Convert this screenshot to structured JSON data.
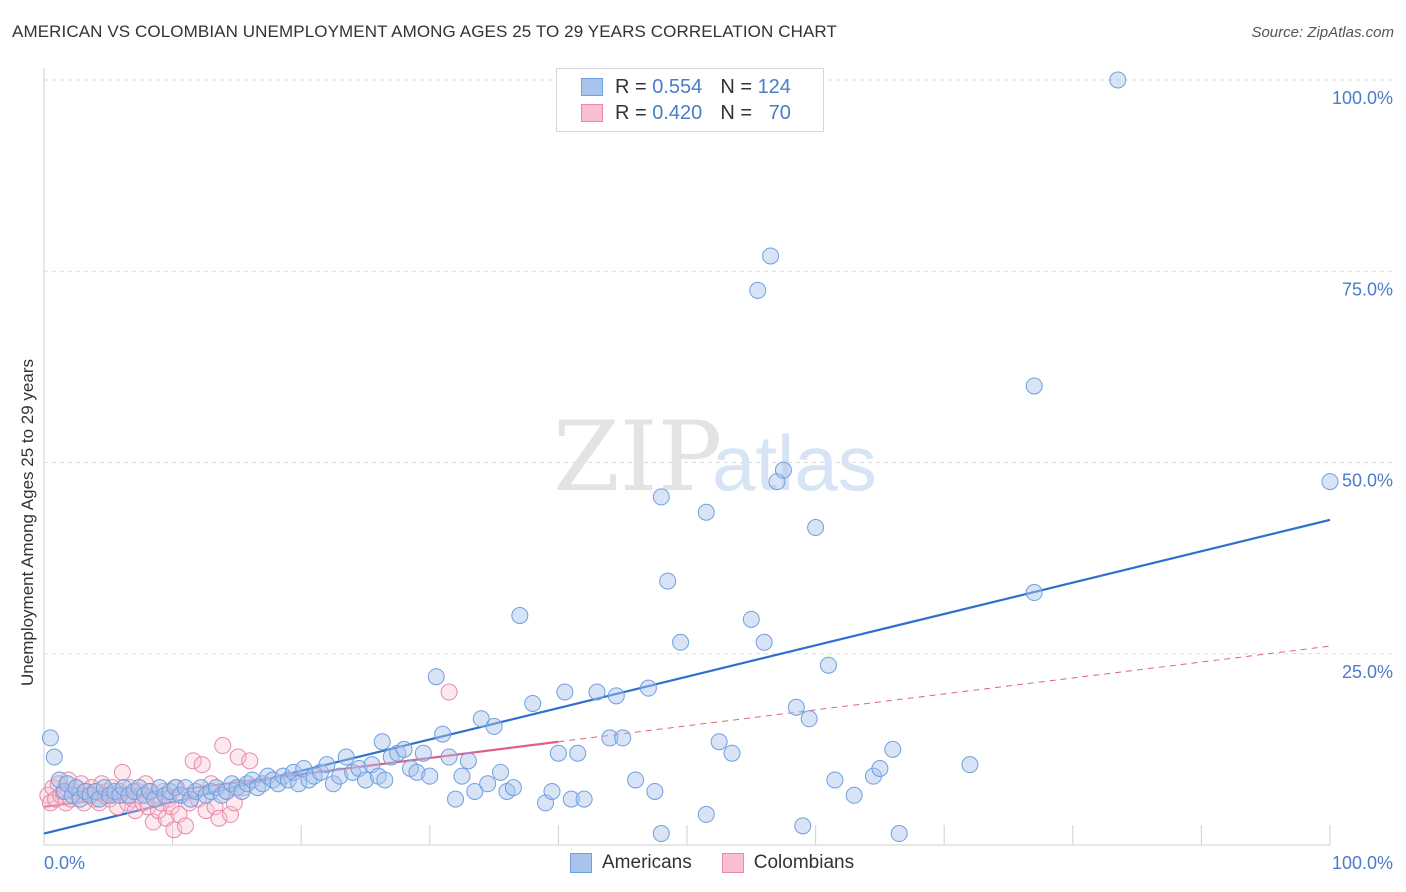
{
  "title": "AMERICAN VS COLOMBIAN UNEMPLOYMENT AMONG AGES 25 TO 29 YEARS CORRELATION CHART",
  "source": "Source: ZipAtlas.com",
  "watermark": {
    "zip": "ZIP",
    "atlas": "atlas"
  },
  "legend": {
    "rows": [
      {
        "r_label": "R =",
        "r_value": "0.554",
        "n_label": "N =",
        "n_value": "124",
        "color": "#a9c4ec",
        "stroke": "#6f9fe0"
      },
      {
        "r_label": "R =",
        "r_value": "0.420",
        "n_label": "N =",
        "n_value": "70",
        "color": "#f7bfd1",
        "stroke": "#e88aa8"
      }
    ]
  },
  "bottom_legend": {
    "americans": "Americans",
    "colombians": "Colombians"
  },
  "chart_data": {
    "type": "scatter",
    "title": "AMERICAN VS COLOMBIAN UNEMPLOYMENT AMONG AGES 25 TO 29 YEARS CORRELATION CHART",
    "xlabel": "",
    "ylabel": "Unemployment Among Ages 25 to 29 years",
    "xlim": [
      0,
      100
    ],
    "ylim": [
      0,
      100
    ],
    "x_tick_labels": [
      "0.0%",
      "100.0%"
    ],
    "y_tick_labels": [
      "100.0%",
      "75.0%",
      "50.0%",
      "25.0%"
    ],
    "y_ticks": [
      100,
      75,
      50,
      25
    ],
    "grid": true,
    "legend_position": "top-center",
    "colors": {
      "americans": "#6f9fe0",
      "americans_fill": "#a9c4ec",
      "colombians": "#e88aa8",
      "colombians_fill": "#f7bfd1",
      "americans_line": "#2f6fce",
      "colombians_line": "#e0608a"
    },
    "series": [
      {
        "name": "Americans",
        "trend": {
          "x": [
            0,
            100
          ],
          "y": [
            1.5,
            42.5
          ]
        },
        "points": [
          [
            0.5,
            14
          ],
          [
            0.8,
            11.5
          ],
          [
            1.2,
            8.5
          ],
          [
            1.6,
            7
          ],
          [
            1.8,
            8
          ],
          [
            2.2,
            6.5
          ],
          [
            2.5,
            7.5
          ],
          [
            2.8,
            6
          ],
          [
            3.2,
            7
          ],
          [
            3.6,
            6.5
          ],
          [
            4.0,
            7
          ],
          [
            4.3,
            6
          ],
          [
            4.7,
            7.5
          ],
          [
            5.1,
            6.5
          ],
          [
            5.5,
            7
          ],
          [
            5.9,
            6.5
          ],
          [
            6.2,
            7.5
          ],
          [
            6.6,
            6.5
          ],
          [
            7.0,
            7
          ],
          [
            7.4,
            7.5
          ],
          [
            7.8,
            6.5
          ],
          [
            8.2,
            7
          ],
          [
            8.6,
            6
          ],
          [
            9.0,
            7.5
          ],
          [
            9.4,
            6.5
          ],
          [
            9.8,
            7
          ],
          [
            10.2,
            7.5
          ],
          [
            10.6,
            6.5
          ],
          [
            11.0,
            7.5
          ],
          [
            11.4,
            6
          ],
          [
            11.8,
            7
          ],
          [
            12.2,
            7.5
          ],
          [
            12.6,
            6.5
          ],
          [
            13.0,
            7
          ],
          [
            13.4,
            7.5
          ],
          [
            13.8,
            6.5
          ],
          [
            14.2,
            7
          ],
          [
            14.6,
            8
          ],
          [
            15.0,
            7.5
          ],
          [
            15.4,
            7
          ],
          [
            15.8,
            8
          ],
          [
            16.2,
            8.5
          ],
          [
            16.6,
            7.5
          ],
          [
            17.0,
            8
          ],
          [
            17.4,
            9
          ],
          [
            17.8,
            8.5
          ],
          [
            18.2,
            8
          ],
          [
            18.6,
            9
          ],
          [
            19.0,
            8.5
          ],
          [
            19.4,
            9.5
          ],
          [
            19.8,
            8
          ],
          [
            20.2,
            10
          ],
          [
            20.6,
            8.5
          ],
          [
            21.0,
            9
          ],
          [
            21.5,
            9.5
          ],
          [
            22.0,
            10.5
          ],
          [
            22.5,
            8
          ],
          [
            23.0,
            9
          ],
          [
            23.5,
            11.5
          ],
          [
            24.0,
            9.5
          ],
          [
            24.5,
            10
          ],
          [
            25.0,
            8.5
          ],
          [
            25.5,
            10.5
          ],
          [
            26.0,
            9
          ],
          [
            26.5,
            8.5
          ],
          [
            26.3,
            13.5
          ],
          [
            27.0,
            11.5
          ],
          [
            27.5,
            12
          ],
          [
            28.0,
            12.5
          ],
          [
            28.5,
            10
          ],
          [
            29.0,
            9.5
          ],
          [
            29.5,
            12
          ],
          [
            30.0,
            9
          ],
          [
            30.5,
            22
          ],
          [
            31.0,
            14.5
          ],
          [
            31.5,
            11.5
          ],
          [
            32.0,
            6
          ],
          [
            32.5,
            9
          ],
          [
            33.0,
            11
          ],
          [
            33.5,
            7
          ],
          [
            34.0,
            16.5
          ],
          [
            34.5,
            8
          ],
          [
            35.0,
            15.5
          ],
          [
            35.5,
            9.5
          ],
          [
            36.0,
            7
          ],
          [
            36.5,
            7.5
          ],
          [
            37.0,
            30
          ],
          [
            38.0,
            18.5
          ],
          [
            39.0,
            5.5
          ],
          [
            39.5,
            7
          ],
          [
            40.0,
            12
          ],
          [
            40.5,
            20
          ],
          [
            41.0,
            6
          ],
          [
            41.5,
            12
          ],
          [
            42.0,
            6
          ],
          [
            43.0,
            20
          ],
          [
            44.0,
            14
          ],
          [
            44.5,
            19.5
          ],
          [
            45.0,
            14
          ],
          [
            46.0,
            8.5
          ],
          [
            47.0,
            20.5
          ],
          [
            47.5,
            7
          ],
          [
            48.0,
            45.5
          ],
          [
            48.0,
            1.5
          ],
          [
            48.5,
            34.5
          ],
          [
            49.5,
            26.5
          ],
          [
            51.5,
            43.5
          ],
          [
            51.5,
            4
          ],
          [
            52.5,
            13.5
          ],
          [
            53.5,
            12
          ],
          [
            55.0,
            29.5
          ],
          [
            56.0,
            26.5
          ],
          [
            55.5,
            72.5
          ],
          [
            56.5,
            77
          ],
          [
            57.0,
            47.5
          ],
          [
            57.5,
            49
          ],
          [
            58.5,
            18
          ],
          [
            59.0,
            2.5
          ],
          [
            59.5,
            16.5
          ],
          [
            60.0,
            41.5
          ],
          [
            61.0,
            23.5
          ],
          [
            61.5,
            8.5
          ],
          [
            63.0,
            6.5
          ],
          [
            64.5,
            9
          ],
          [
            65.0,
            10
          ],
          [
            66.0,
            12.5
          ],
          [
            66.5,
            1.5
          ],
          [
            72.0,
            10.5
          ],
          [
            77.0,
            60
          ],
          [
            77.0,
            33
          ],
          [
            83.5,
            100
          ],
          [
            100.0,
            47.5
          ]
        ]
      },
      {
        "name": "Colombians",
        "trend": {
          "x": [
            0,
            40
          ],
          "y": [
            5,
            13.5
          ]
        },
        "trend_extended": {
          "x": [
            40,
            100
          ],
          "y": [
            13.5,
            26
          ]
        },
        "points": [
          [
            0.3,
            6.5
          ],
          [
            0.5,
            5.5
          ],
          [
            0.7,
            7.5
          ],
          [
            0.9,
            6
          ],
          [
            1.1,
            8
          ],
          [
            1.3,
            6.5
          ],
          [
            1.5,
            7
          ],
          [
            1.7,
            5.5
          ],
          [
            1.9,
            8.5
          ],
          [
            2.1,
            6
          ],
          [
            2.3,
            7
          ],
          [
            2.5,
            7.5
          ],
          [
            2.7,
            6.5
          ],
          [
            2.9,
            8
          ],
          [
            3.1,
            5.5
          ],
          [
            3.3,
            7
          ],
          [
            3.5,
            6.5
          ],
          [
            3.7,
            7.5
          ],
          [
            3.9,
            6
          ],
          [
            4.1,
            7
          ],
          [
            4.3,
            5.5
          ],
          [
            4.5,
            8
          ],
          [
            4.7,
            6.5
          ],
          [
            4.9,
            7
          ],
          [
            5.1,
            6
          ],
          [
            5.3,
            7.5
          ],
          [
            5.5,
            6.5
          ],
          [
            5.7,
            5
          ],
          [
            5.9,
            7
          ],
          [
            6.1,
            9.5
          ],
          [
            6.3,
            6.5
          ],
          [
            6.5,
            5.5
          ],
          [
            6.7,
            7.5
          ],
          [
            6.9,
            6
          ],
          [
            7.1,
            4.5
          ],
          [
            7.3,
            7
          ],
          [
            7.5,
            6.5
          ],
          [
            7.7,
            5.5
          ],
          [
            7.9,
            8
          ],
          [
            8.1,
            5
          ],
          [
            8.3,
            7
          ],
          [
            8.5,
            3
          ],
          [
            8.7,
            6.5
          ],
          [
            8.9,
            4.5
          ],
          [
            9.1,
            5.5
          ],
          [
            9.3,
            7
          ],
          [
            9.5,
            3.5
          ],
          [
            9.7,
            6
          ],
          [
            9.9,
            5
          ],
          [
            10.1,
            2
          ],
          [
            10.3,
            7.5
          ],
          [
            10.5,
            4
          ],
          [
            10.7,
            6.5
          ],
          [
            11.0,
            2.5
          ],
          [
            11.3,
            5.5
          ],
          [
            11.6,
            11
          ],
          [
            12.0,
            6
          ],
          [
            12.3,
            10.5
          ],
          [
            12.6,
            4.5
          ],
          [
            13.0,
            8
          ],
          [
            13.3,
            5
          ],
          [
            13.6,
            3.5
          ],
          [
            13.9,
            13
          ],
          [
            14.2,
            7
          ],
          [
            14.5,
            4
          ],
          [
            14.8,
            5.5
          ],
          [
            15.1,
            11.5
          ],
          [
            15.5,
            7.5
          ],
          [
            16.0,
            11
          ],
          [
            31.5,
            20
          ]
        ]
      }
    ]
  }
}
